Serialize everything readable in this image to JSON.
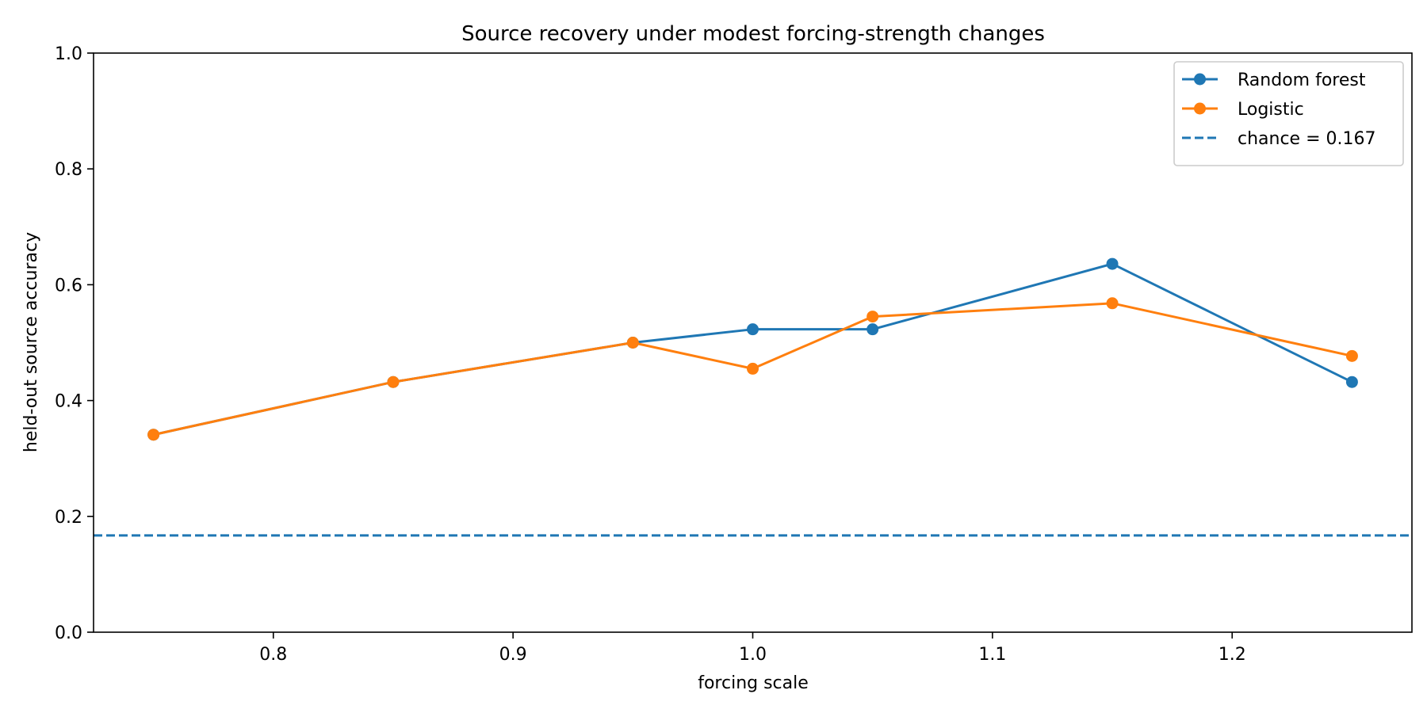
{
  "chart_data": {
    "type": "line",
    "title": "Source recovery under modest forcing-strength changes",
    "xlabel": "forcing scale",
    "ylabel": "held-out source accuracy",
    "xlim": [
      0.725,
      1.275
    ],
    "ylim": [
      0.0,
      1.0
    ],
    "xticks": [
      "0.8",
      "0.9",
      "1.0",
      "1.1",
      "1.2"
    ],
    "yticks": [
      "0.0",
      "0.2",
      "0.4",
      "0.6",
      "0.8",
      "1.0"
    ],
    "grid": false,
    "legend_position": "top-right",
    "x": [
      0.75,
      0.85,
      0.95,
      1.0,
      1.05,
      1.15,
      1.25
    ],
    "series": [
      {
        "name": "Random forest",
        "color": "#1f77b4",
        "marker": "circle",
        "values": [
          0.341,
          0.432,
          0.5,
          0.523,
          0.523,
          0.636,
          0.432
        ]
      },
      {
        "name": "Logistic",
        "color": "#ff7f0e",
        "marker": "circle",
        "values": [
          0.341,
          0.432,
          0.5,
          0.455,
          0.545,
          0.568,
          0.477
        ]
      }
    ],
    "reference_lines": [
      {
        "name": "chance = 0.167",
        "value": 0.167,
        "color": "#1f77b4",
        "style": "dashed"
      }
    ]
  }
}
